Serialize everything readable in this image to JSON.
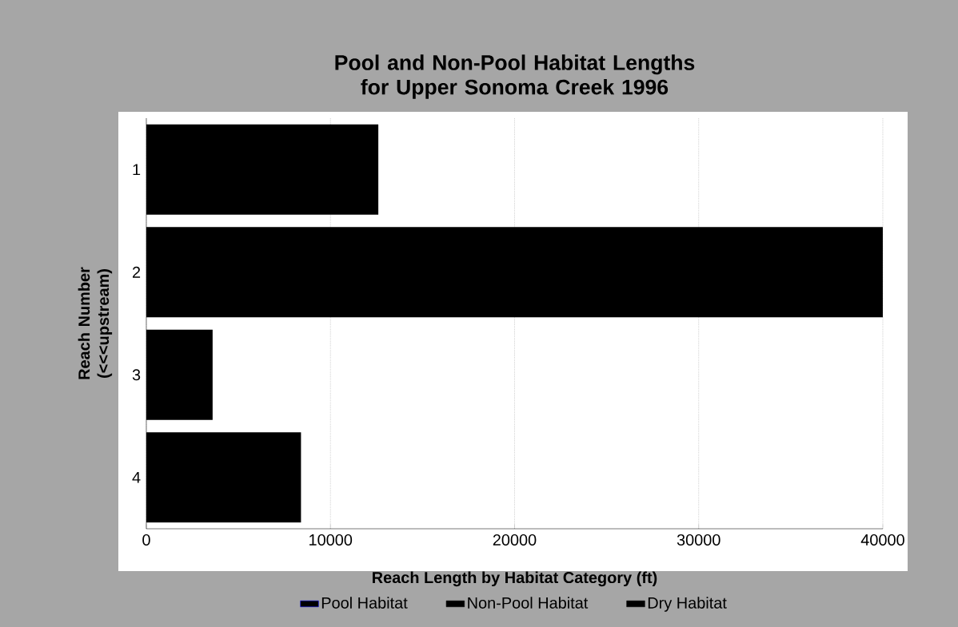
{
  "chart_data": {
    "type": "bar",
    "orientation": "horizontal",
    "stacked": true,
    "title": "Pool and Non-Pool Habitat Lengths for Upper Sonoma Creek 1996",
    "xlabel": "Reach Length by Habitat Category (ft)",
    "ylabel": "Reach Number (<<<upstream)",
    "categories": [
      "1",
      "2",
      "3",
      "4"
    ],
    "series": [
      {
        "name": "Pool Habitat",
        "color": "#000000",
        "values": [
          12600,
          40000,
          3600,
          8400
        ]
      },
      {
        "name": "Non-Pool Habitat",
        "color": "#000000",
        "values": [
          null,
          null,
          null,
          null
        ]
      },
      {
        "name": "Dry Habitat",
        "color": "#000000",
        "values": [
          null,
          null,
          null,
          null
        ]
      }
    ],
    "xlim": [
      0,
      40000
    ],
    "xticks": [
      0,
      10000,
      20000,
      30000,
      40000
    ],
    "grid": "x",
    "legend": "bottom"
  }
}
